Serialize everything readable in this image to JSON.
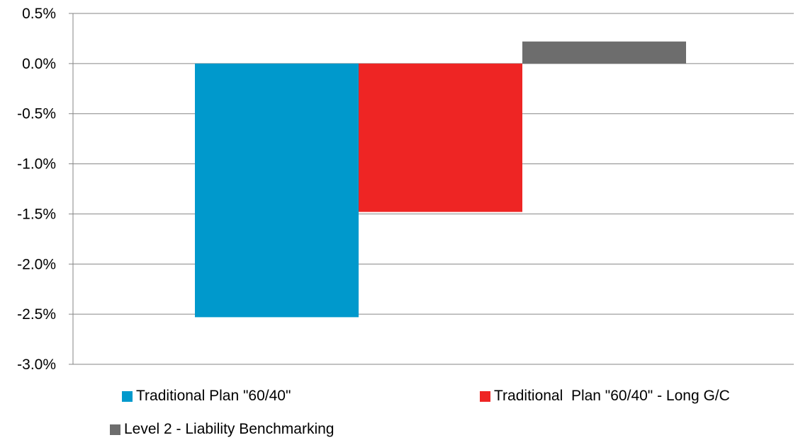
{
  "chart_data": {
    "type": "bar",
    "title": "",
    "xlabel": "",
    "ylabel": "",
    "ylim": [
      -3.0,
      0.5
    ],
    "yticks": [
      "0.5%",
      "0.0%",
      "-0.5%",
      "-1.0%",
      "-1.5%",
      "-2.0%",
      "-2.5%",
      "-3.0%"
    ],
    "grid": true,
    "legend_position": "bottom",
    "series": [
      {
        "name": "Traditional Plan \"60/40\"",
        "values": [
          -2.53
        ],
        "color": "#0099CC"
      },
      {
        "name": "Traditional  Plan \"60/40\" - Long G/C",
        "values": [
          -1.48
        ],
        "color": "#EE2524"
      },
      {
        "name": "Level 2 - Liability Benchmarking",
        "values": [
          0.22
        ],
        "color": "#6D6D6D"
      }
    ]
  }
}
